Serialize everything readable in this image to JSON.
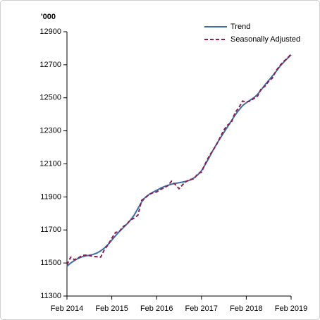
{
  "chart_data": {
    "type": "line",
    "y_label": "'000",
    "categories": [
      "Feb 2014",
      null,
      null,
      null,
      null,
      null,
      null,
      null,
      null,
      null,
      null,
      null,
      "Feb 2015",
      null,
      null,
      null,
      null,
      null,
      null,
      null,
      null,
      null,
      null,
      null,
      "Feb 2016",
      null,
      null,
      null,
      null,
      null,
      null,
      null,
      null,
      null,
      null,
      null,
      "Feb 2017",
      null,
      null,
      null,
      null,
      null,
      null,
      null,
      null,
      null,
      null,
      null,
      "Feb 2018",
      null,
      null,
      null,
      null,
      null,
      null,
      null,
      null,
      null,
      null,
      null,
      "Feb 2019"
    ],
    "series": [
      {
        "name": "Trend",
        "color": "#3b6fa8",
        "dash": false,
        "values": [
          11480,
          11500,
          11515,
          11528,
          11537,
          11543,
          11547,
          11552,
          11560,
          11573,
          11590,
          11612,
          11638,
          11665,
          11690,
          11712,
          11735,
          11760,
          11790,
          11830,
          11870,
          11898,
          11915,
          11928,
          11940,
          11952,
          11962,
          11970,
          11977,
          11982,
          11986,
          11990,
          11995,
          12002,
          12015,
          12033,
          12058,
          12095,
          12135,
          12178,
          12218,
          12255,
          12290,
          12325,
          12360,
          12395,
          12425,
          12452,
          12470,
          12485,
          12500,
          12520,
          12548,
          12578,
          12605,
          12632,
          12660,
          12690,
          12715,
          12738,
          12760
        ]
      },
      {
        "name": "Seasonally Adjusted",
        "color": "#8c1d4f",
        "dash": true,
        "values": [
          11490,
          11535,
          11520,
          11530,
          11545,
          11548,
          11545,
          11540,
          11538,
          11535,
          11580,
          11610,
          11650,
          11685,
          11690,
          11720,
          11735,
          11760,
          11772,
          11790,
          11880,
          11895,
          11915,
          11925,
          11930,
          11945,
          11955,
          11968,
          11995,
          11975,
          11950,
          11975,
          11995,
          12005,
          12010,
          12040,
          12050,
          12100,
          12145,
          12180,
          12215,
          12260,
          12305,
          12335,
          12350,
          12410,
          12440,
          12480,
          12475,
          12480,
          12495,
          12510,
          12555,
          12570,
          12600,
          12620,
          12665,
          12695,
          12720,
          12740,
          12765
        ]
      }
    ],
    "ylim": [
      11300,
      12900
    ],
    "yticks": [
      11300,
      11500,
      11700,
      11900,
      12100,
      12300,
      12500,
      12700,
      12900
    ],
    "grid": false,
    "legend": "top-right"
  }
}
